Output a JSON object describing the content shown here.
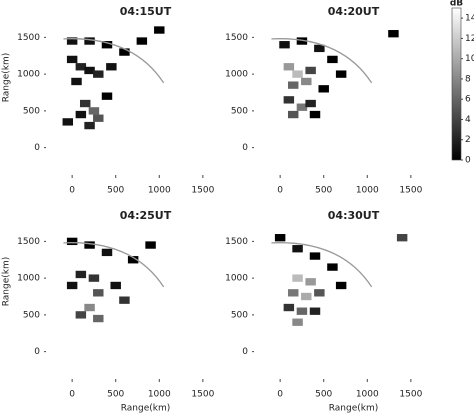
{
  "chart_data": [
    {
      "type": "heatmap",
      "title": "04:15UT",
      "ylabel": "Range(km)",
      "xlim": [
        -300,
        1800
      ],
      "ylim": [
        -250,
        1750
      ],
      "xticks": [
        0,
        500,
        1000,
        1500
      ],
      "yticks": [
        0,
        500,
        1000,
        1500
      ],
      "x": [
        0,
        100,
        200,
        300,
        50,
        150,
        250,
        100,
        300,
        200,
        450,
        600,
        800,
        1000,
        400,
        -50,
        0,
        200,
        400
      ],
      "y": [
        1200,
        1100,
        1050,
        1000,
        900,
        600,
        500,
        450,
        400,
        300,
        1100,
        1300,
        1450,
        1600,
        700,
        350,
        1450,
        1450,
        1400
      ],
      "values": [
        1,
        2,
        1,
        2,
        1,
        3,
        6,
        1,
        5,
        2,
        1,
        0,
        0,
        0,
        0,
        1,
        1,
        1,
        0
      ]
    },
    {
      "type": "heatmap",
      "title": "04:20UT",
      "xlim": [
        -300,
        1800
      ],
      "ylim": [
        -250,
        1750
      ],
      "xticks": [
        0,
        500,
        1000,
        1500
      ],
      "yticks": [
        0,
        500,
        1000,
        1500
      ],
      "x": [
        100,
        200,
        300,
        150,
        350,
        100,
        250,
        150,
        350,
        50,
        250,
        450,
        600,
        700,
        500,
        400,
        1300
      ],
      "y": [
        1100,
        1000,
        900,
        850,
        1050,
        650,
        550,
        450,
        600,
        1400,
        1450,
        1350,
        1200,
        1000,
        800,
        450,
        1550
      ],
      "values": [
        9,
        11,
        8,
        6,
        4,
        3,
        7,
        5,
        2,
        1,
        0,
        1,
        0,
        0,
        0,
        0,
        0
      ]
    },
    {
      "type": "heatmap",
      "title": "04:25UT",
      "xlabel": "Range(km)",
      "ylabel": "Range(km)",
      "xlim": [
        -300,
        1800
      ],
      "ylim": [
        -250,
        1750
      ],
      "xticks": [
        0,
        500,
        1000,
        1500
      ],
      "yticks": [
        0,
        500,
        1000,
        1500
      ],
      "x": [
        0,
        100,
        250,
        300,
        600,
        500,
        200,
        100,
        300,
        0,
        200,
        400,
        700,
        900
      ],
      "y": [
        900,
        1050,
        1000,
        800,
        700,
        900,
        600,
        500,
        450,
        1500,
        1450,
        1350,
        1250,
        1450
      ],
      "values": [
        1,
        2,
        3,
        5,
        3,
        1,
        8,
        4,
        6,
        0,
        0,
        1,
        0,
        0
      ]
    },
    {
      "type": "heatmap",
      "title": "04:30UT",
      "xlabel": "Range(km)",
      "xlim": [
        -300,
        1800
      ],
      "ylim": [
        -250,
        1750
      ],
      "xticks": [
        0,
        500,
        1000,
        1500
      ],
      "yticks": [
        0,
        500,
        1000,
        1500
      ],
      "x": [
        200,
        350,
        150,
        300,
        450,
        100,
        250,
        200,
        400,
        0,
        200,
        400,
        600,
        700,
        1400
      ],
      "y": [
        1000,
        950,
        800,
        750,
        800,
        600,
        550,
        400,
        550,
        1550,
        1400,
        1300,
        1150,
        900,
        1550
      ],
      "values": [
        11,
        9,
        7,
        10,
        5,
        3,
        6,
        8,
        2,
        0,
        1,
        0,
        0,
        0,
        4
      ]
    },
    {
      "type": "colorbar",
      "label": "dB",
      "lim": [
        0,
        15
      ],
      "ticks": [
        0,
        2,
        4,
        6,
        8,
        10,
        12,
        14
      ]
    }
  ]
}
